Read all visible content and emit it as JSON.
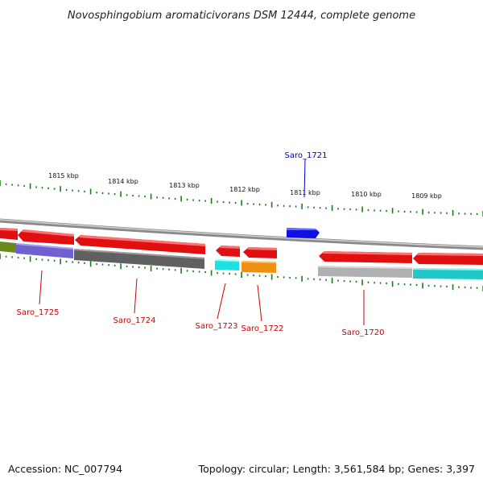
{
  "header": {
    "title": "Novosphingobium aromaticivorans DSM 12444, complete genome"
  },
  "footer": {
    "accession": "Accession: NC_007794",
    "summary": "Topology: circular; Length: 3,561,584 bp; Genes: 3,397"
  },
  "ruler": {
    "tick_color": "#1a7a1a",
    "labels": [
      "1815 kbp",
      "1814 kbp",
      "1813 kbp",
      "1812 kbp",
      "1811 kbp",
      "1810 kbp",
      "1809 kbp"
    ]
  },
  "colors": {
    "forward_label": "#0000cc",
    "reverse_label": "#cc0000",
    "backbone": "#8a8a8a"
  },
  "genes": [
    {
      "id": "Saro_1725",
      "label": "Saro_1725",
      "strand": "-",
      "color": "#e01010"
    },
    {
      "id": "Saro_1724",
      "label": "Saro_1724",
      "strand": "-",
      "color": "#e01010"
    },
    {
      "id": "Saro_1723",
      "label": "Saro_1723",
      "strand": "-",
      "color": "#e01010"
    },
    {
      "id": "Saro_1722",
      "label": "Saro_1722",
      "strand": "-",
      "color": "#e01010"
    },
    {
      "id": "Saro_1721",
      "label": "Saro_1721",
      "strand": "+",
      "color": "#1010e0"
    },
    {
      "id": "Saro_1720",
      "label": "Saro_1720",
      "strand": "-",
      "color": "#e01010"
    }
  ],
  "cog_colors": [
    "#6a8a20",
    "#7060d0",
    "#606060",
    "#20e0e0",
    "#f09010",
    "#b0b0b0",
    "#20c8c8"
  ]
}
